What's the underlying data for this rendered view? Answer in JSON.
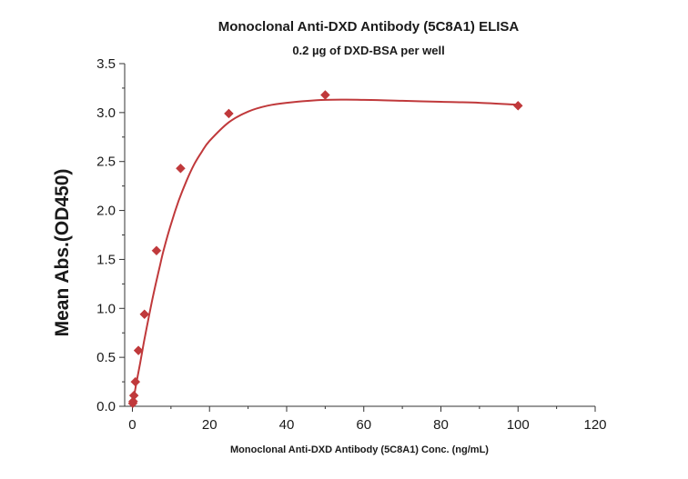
{
  "chart_data": {
    "type": "scatter",
    "title": "Monoclonal Anti-DXD Antibody (5C8A1) ELISA",
    "subtitle": "0.2 µg of DXD-BSA per well",
    "xlabel": "Monoclonal Anti-DXD Antibody (5C8A1) Conc. (ng/mL)",
    "ylabel": "Mean Abs.(OD450)",
    "xlim": [
      -2,
      120
    ],
    "ylim": [
      0,
      3.5
    ],
    "x_ticks": [
      0,
      20,
      40,
      60,
      80,
      100,
      120
    ],
    "y_ticks": [
      0.0,
      0.5,
      1.0,
      1.5,
      2.0,
      2.5,
      3.0,
      3.5
    ],
    "x_tick_labels": [
      "0",
      "20",
      "40",
      "60",
      "80",
      "100",
      "120"
    ],
    "y_tick_labels": [
      "0.0",
      "0.5",
      "1.0",
      "1.5",
      "2.0",
      "2.5",
      "3.0",
      "3.5"
    ],
    "grid": false,
    "series": [
      {
        "marker": "diamond",
        "color": "#c0393b",
        "x": [
          0.1,
          0.2,
          0.39,
          0.78,
          1.56,
          3.13,
          6.25,
          12.5,
          25,
          50,
          100
        ],
        "y": [
          0.03,
          0.05,
          0.11,
          0.25,
          0.57,
          0.94,
          1.59,
          2.43,
          2.99,
          3.18,
          3.07
        ]
      }
    ],
    "fit_curve": {
      "color": "#c0393b",
      "x": [
        0.1,
        0.5,
        1,
        2,
        3,
        4,
        5,
        6,
        7,
        8,
        10,
        12,
        14,
        16,
        18,
        20,
        25,
        30,
        35,
        40,
        50,
        60,
        70,
        80,
        90,
        100
      ],
      "y": [
        0.04,
        0.12,
        0.23,
        0.44,
        0.66,
        0.86,
        1.06,
        1.24,
        1.41,
        1.58,
        1.86,
        2.1,
        2.3,
        2.47,
        2.6,
        2.71,
        2.9,
        3.01,
        3.07,
        3.1,
        3.13,
        3.13,
        3.12,
        3.11,
        3.1,
        3.08
      ]
    }
  }
}
